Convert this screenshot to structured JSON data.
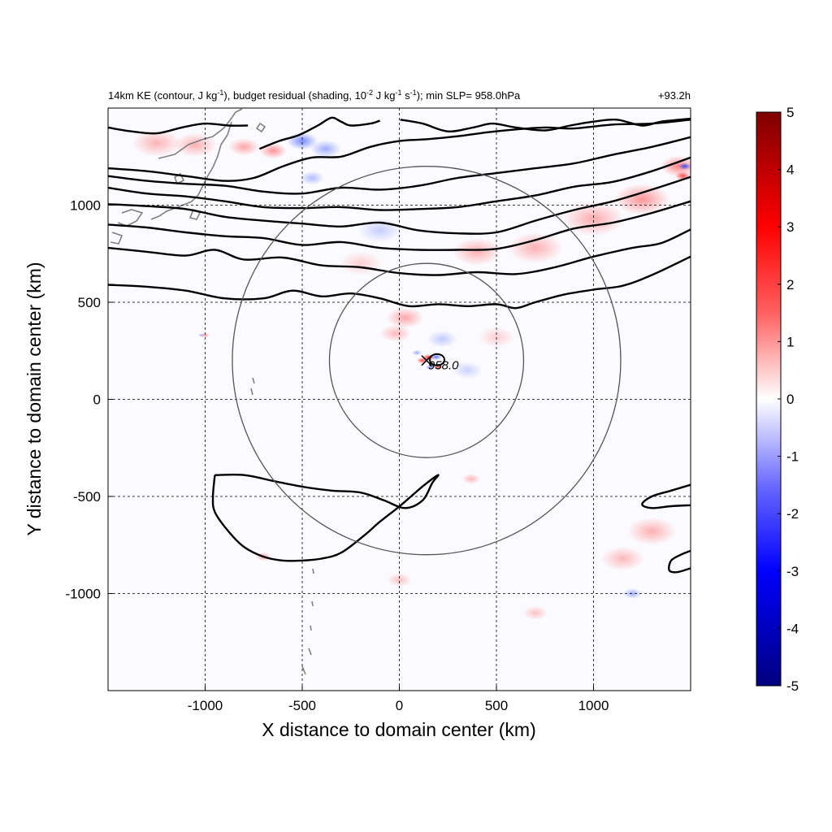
{
  "title": {
    "left": "14km KE (contour, J kg⁻¹), budget residual (shading, 10⁻² J kg⁻¹ s⁻¹); min SLP= 958.0hPa",
    "right": "+93.2h"
  },
  "center_label": "958.0",
  "colors": {
    "positive": "#d7191c",
    "negative": "#2c3cd0",
    "colormap": [
      "#00007f",
      "#0000ff",
      "#8080ff",
      "#ffffff",
      "#ff8080",
      "#ff0000",
      "#7f0000"
    ]
  },
  "chart_data": {
    "type": "heatmap",
    "title": "14km KE (contour, J kg-1), budget residual (shading, 10-2 J kg-1 s-1); min SLP= 958.0hPa",
    "xlabel": "X distance to domain center (km)",
    "ylabel": "Y distance to domain center (km)",
    "xlim": [
      -1500,
      1500
    ],
    "ylim": [
      -1500,
      1500
    ],
    "xticks": [
      -1000,
      -500,
      0,
      500,
      1000
    ],
    "yticks": [
      -1000,
      -500,
      0,
      500,
      1000
    ],
    "xtick_labels": [
      "-1000",
      "-500",
      "0",
      "500",
      "1000"
    ],
    "ytick_labels": [
      "-1000",
      "-500",
      "0",
      "500",
      "1000"
    ],
    "grid": true,
    "colorbar": {
      "min": -5,
      "max": 5,
      "ticks": [
        5,
        4,
        3,
        2,
        1,
        0,
        -1,
        -2,
        -3,
        -4,
        -5
      ],
      "tick_labels": [
        "5",
        "4",
        "3",
        "2",
        "1",
        "0",
        "-1",
        "-2",
        "-3",
        "-4",
        "-5"
      ],
      "placement": "right"
    },
    "storm_center": {
      "x": 140,
      "y": 200,
      "min_slp_hPa": 958.0
    },
    "range_rings_km": [
      500,
      1000
    ],
    "ke_contours": [
      [
        [
          -1500,
          590
        ],
        [
          -1300,
          580
        ],
        [
          -1100,
          560
        ],
        [
          -900,
          520
        ],
        [
          -700,
          520
        ],
        [
          -550,
          560
        ],
        [
          -400,
          530
        ],
        [
          -250,
          545
        ],
        [
          -100,
          520
        ],
        [
          50,
          480
        ],
        [
          200,
          490
        ],
        [
          350,
          480
        ],
        [
          500,
          490
        ],
        [
          600,
          470
        ],
        [
          700,
          500
        ],
        [
          850,
          540
        ],
        [
          1000,
          565
        ],
        [
          1150,
          585
        ],
        [
          1300,
          640
        ],
        [
          1500,
          735
        ]
      ],
      [
        [
          -1500,
          780
        ],
        [
          -1300,
          760
        ],
        [
          -1100,
          740
        ],
        [
          -950,
          770
        ],
        [
          -800,
          720
        ],
        [
          -600,
          730
        ],
        [
          -400,
          690
        ],
        [
          -200,
          680
        ],
        [
          0,
          650
        ],
        [
          200,
          640
        ],
        [
          400,
          655
        ],
        [
          600,
          645
        ],
        [
          800,
          680
        ],
        [
          1000,
          735
        ],
        [
          1200,
          780
        ],
        [
          1350,
          805
        ],
        [
          1500,
          875
        ]
      ],
      [
        [
          -1500,
          900
        ],
        [
          -1300,
          885
        ],
        [
          -1100,
          860
        ],
        [
          -900,
          840
        ],
        [
          -700,
          830
        ],
        [
          -500,
          795
        ],
        [
          -300,
          810
        ],
        [
          -100,
          780
        ],
        [
          100,
          770
        ],
        [
          300,
          770
        ],
        [
          500,
          775
        ],
        [
          700,
          820
        ],
        [
          900,
          880
        ],
        [
          1100,
          910
        ],
        [
          1300,
          960
        ],
        [
          1500,
          1020
        ]
      ],
      [
        [
          -1500,
          1005
        ],
        [
          -1300,
          995
        ],
        [
          -1100,
          980
        ],
        [
          -900,
          940
        ],
        [
          -700,
          920
        ],
        [
          -500,
          905
        ],
        [
          -300,
          890
        ],
        [
          -100,
          910
        ],
        [
          100,
          870
        ],
        [
          300,
          855
        ],
        [
          500,
          860
        ],
        [
          700,
          920
        ],
        [
          900,
          975
        ],
        [
          1100,
          1020
        ],
        [
          1300,
          1080
        ],
        [
          1500,
          1145
        ]
      ],
      [
        [
          -1500,
          1090
        ],
        [
          -1300,
          1060
        ],
        [
          -1100,
          1045
        ],
        [
          -900,
          1020
        ],
        [
          -700,
          990
        ],
        [
          -500,
          985
        ],
        [
          -300,
          990
        ],
        [
          -100,
          975
        ],
        [
          100,
          980
        ],
        [
          300,
          990
        ],
        [
          500,
          1020
        ],
        [
          700,
          1050
        ],
        [
          900,
          1095
        ],
        [
          1100,
          1120
        ],
        [
          1300,
          1175
        ],
        [
          1500,
          1245
        ]
      ],
      [
        [
          -1500,
          1150
        ],
        [
          -1300,
          1125
        ],
        [
          -1100,
          1110
        ],
        [
          -900,
          1100
        ],
        [
          -700,
          1070
        ],
        [
          -500,
          1060
        ],
        [
          -300,
          1090
        ],
        [
          -100,
          1080
        ],
        [
          100,
          1100
        ],
        [
          300,
          1140
        ],
        [
          500,
          1165
        ],
        [
          700,
          1190
        ],
        [
          900,
          1215
        ],
        [
          1100,
          1260
        ],
        [
          1300,
          1300
        ],
        [
          1500,
          1350
        ]
      ],
      [
        [
          -1500,
          1190
        ],
        [
          -1300,
          1175
        ],
        [
          -1100,
          1150
        ],
        [
          -900,
          1125
        ],
        [
          -750,
          1140
        ],
        [
          -600,
          1200
        ],
        [
          -450,
          1245
        ],
        [
          -300,
          1250
        ],
        [
          -150,
          1300
        ],
        [
          0,
          1330
        ],
        [
          150,
          1340
        ],
        [
          300,
          1355
        ],
        [
          450,
          1375
        ],
        [
          600,
          1390
        ],
        [
          750,
          1400
        ],
        [
          900,
          1395
        ],
        [
          1100,
          1415
        ],
        [
          1300,
          1420
        ],
        [
          1500,
          1440
        ]
      ],
      [
        [
          -1500,
          1400
        ],
        [
          -1380,
          1380
        ],
        [
          -1250,
          1370
        ],
        [
          -1120,
          1400
        ],
        [
          -1000,
          1420
        ],
        [
          -880,
          1410
        ],
        [
          -780,
          1410
        ]
      ],
      [
        [
          -720,
          1290
        ],
        [
          -620,
          1330
        ],
        [
          -520,
          1360
        ],
        [
          -420,
          1410
        ],
        [
          -350,
          1450
        ],
        [
          -300,
          1430
        ],
        [
          -250,
          1410
        ],
        [
          -150,
          1420
        ],
        [
          -100,
          1435
        ]
      ],
      [
        [
          5,
          1440
        ],
        [
          120,
          1420
        ],
        [
          250,
          1380
        ],
        [
          380,
          1400
        ],
        [
          480,
          1420
        ],
        [
          600,
          1400
        ],
        [
          750,
          1385
        ],
        [
          880,
          1410
        ],
        [
          1000,
          1430
        ],
        [
          1120,
          1440
        ],
        [
          1250,
          1410
        ],
        [
          1350,
          1430
        ],
        [
          1500,
          1445
        ]
      ],
      [
        [
          -950,
          -390
        ],
        [
          -800,
          -390
        ],
        [
          -650,
          -420
        ],
        [
          -500,
          -450
        ],
        [
          -350,
          -470
        ],
        [
          -200,
          -480
        ],
        [
          -80,
          -520
        ],
        [
          30,
          -560
        ],
        [
          120,
          -520
        ],
        [
          170,
          -430
        ],
        [
          200,
          -390
        ],
        [
          130,
          -440
        ],
        [
          60,
          -500
        ],
        [
          -10,
          -560
        ],
        [
          -100,
          -630
        ],
        [
          -180,
          -700
        ],
        [
          -300,
          -790
        ],
        [
          -400,
          -820
        ],
        [
          -500,
          -830
        ],
        [
          -600,
          -830
        ],
        [
          -700,
          -810
        ],
        [
          -800,
          -760
        ],
        [
          -880,
          -680
        ],
        [
          -950,
          -580
        ],
        [
          -960,
          -500
        ],
        [
          -950,
          -390
        ]
      ],
      [
        [
          1500,
          -440
        ],
        [
          1400,
          -470
        ],
        [
          1300,
          -500
        ],
        [
          1250,
          -540
        ],
        [
          1300,
          -560
        ],
        [
          1400,
          -550
        ],
        [
          1500,
          -545
        ]
      ],
      [
        [
          1500,
          -780
        ],
        [
          1450,
          -800
        ],
        [
          1400,
          -830
        ],
        [
          1390,
          -880
        ],
        [
          1430,
          -890
        ],
        [
          1500,
          -870
        ]
      ]
    ],
    "residual_features": [
      {
        "x": 150,
        "y": 215,
        "value": 5,
        "radius": 20
      },
      {
        "x": 118,
        "y": 200,
        "value": 4,
        "radius": 18
      },
      {
        "x": 190,
        "y": 218,
        "value": -3,
        "radius": 18
      },
      {
        "x": 160,
        "y": 165,
        "value": -2,
        "radius": 16
      },
      {
        "x": 200,
        "y": 165,
        "value": 4,
        "radius": 14
      },
      {
        "x": 90,
        "y": 240,
        "value": -1.5,
        "radius": 16
      },
      {
        "x": 30,
        "y": 420,
        "value": 1.5,
        "radius": 60
      },
      {
        "x": -20,
        "y": 340,
        "value": 1,
        "radius": 50
      },
      {
        "x": 220,
        "y": 310,
        "value": -0.6,
        "radius": 50
      },
      {
        "x": 400,
        "y": 760,
        "value": 1.2,
        "radius": 80
      },
      {
        "x": 700,
        "y": 780,
        "value": 1.2,
        "radius": 90
      },
      {
        "x": 1000,
        "y": 930,
        "value": 1.4,
        "radius": 100
      },
      {
        "x": 1250,
        "y": 1030,
        "value": 2,
        "radius": 90
      },
      {
        "x": 1440,
        "y": 1200,
        "value": 2.5,
        "radius": 60
      },
      {
        "x": 1460,
        "y": 1150,
        "value": 4,
        "radius": 25
      },
      {
        "x": 1470,
        "y": 1200,
        "value": -4,
        "radius": 20
      },
      {
        "x": -100,
        "y": 870,
        "value": -0.5,
        "radius": 70
      },
      {
        "x": -500,
        "y": 1330,
        "value": -2.5,
        "radius": 50
      },
      {
        "x": -380,
        "y": 1290,
        "value": -1.5,
        "radius": 50
      },
      {
        "x": -650,
        "y": 1280,
        "value": 2,
        "radius": 45
      },
      {
        "x": -800,
        "y": 1300,
        "value": 1.5,
        "radius": 50
      },
      {
        "x": -1050,
        "y": 1310,
        "value": 1.2,
        "radius": 70
      },
      {
        "x": -1250,
        "y": 1320,
        "value": 1.1,
        "radius": 80
      },
      {
        "x": -450,
        "y": 1140,
        "value": -1,
        "radius": 40
      },
      {
        "x": -1000,
        "y": 330,
        "value": 2,
        "radius": 14
      },
      {
        "x": -1020,
        "y": 330,
        "value": -1.5,
        "radius": 10
      },
      {
        "x": 370,
        "y": -410,
        "value": 1,
        "radius": 30
      },
      {
        "x": 1300,
        "y": -680,
        "value": 1.2,
        "radius": 80
      },
      {
        "x": 1150,
        "y": -820,
        "value": 1,
        "radius": 70
      },
      {
        "x": 1200,
        "y": -1000,
        "value": -1.5,
        "radius": 30
      },
      {
        "x": -700,
        "y": -810,
        "value": 1.5,
        "radius": 25
      },
      {
        "x": 0,
        "y": -930,
        "value": 0.8,
        "radius": 40
      },
      {
        "x": 700,
        "y": -1100,
        "value": 0.8,
        "radius": 40
      },
      {
        "x": 350,
        "y": 150,
        "value": -0.4,
        "radius": 50
      },
      {
        "x": 500,
        "y": 320,
        "value": 0.4,
        "radius": 60
      },
      {
        "x": -200,
        "y": 700,
        "value": 0.4,
        "radius": 70
      }
    ]
  }
}
